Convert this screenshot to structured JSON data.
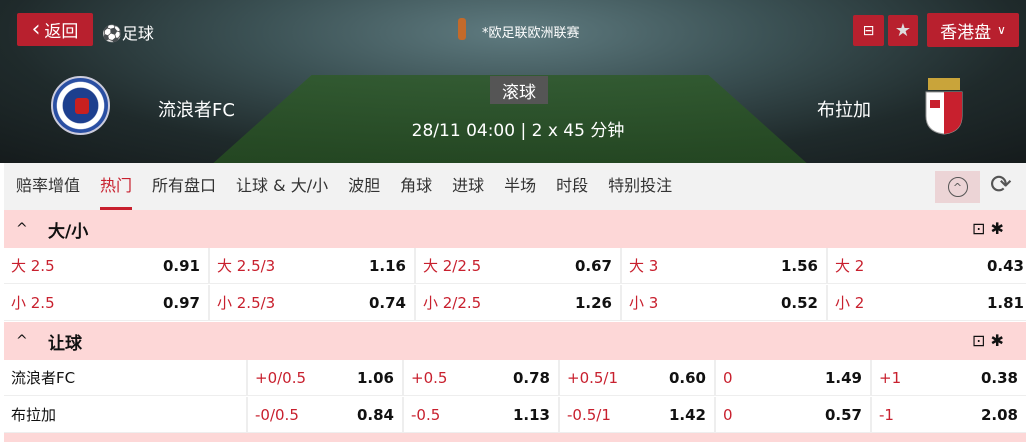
{
  "header": {
    "back_label": "返回",
    "sport": "足球",
    "league": "*欧足联欧洲联赛",
    "odds_format": "香港盘",
    "status": "滚球",
    "kickoff": "28/11 04:00 | 2 x 45 分钟",
    "home": "流浪者FC",
    "away": "布拉加",
    "accent": "#b8202e"
  },
  "tabs": [
    "赔率增值",
    "热门",
    "所有盘口",
    "让球 & 大/小",
    "波胆",
    "角球",
    "进球",
    "半场",
    "时段",
    "特别投注"
  ],
  "active_tab": "热门",
  "markets": [
    {
      "title": "大/小",
      "rows": [
        [
          [
            "大 2.5",
            "0.91"
          ],
          [
            "大 2.5/3",
            "1.16"
          ],
          [
            "大 2/2.5",
            "0.67"
          ],
          [
            "大 3",
            "1.56"
          ],
          [
            "大 2",
            "0.43"
          ]
        ],
        [
          [
            "小 2.5",
            "0.97"
          ],
          [
            "小 2.5/3",
            "0.74"
          ],
          [
            "小 2/2.5",
            "1.26"
          ],
          [
            "小 3",
            "0.52"
          ],
          [
            "小 2",
            "1.81"
          ]
        ]
      ]
    },
    {
      "title": "让球",
      "rows": [
        {
          "team": "流浪者FC",
          "cells": [
            [
              "+0/0.5",
              "1.06"
            ],
            [
              "+0.5",
              "0.78"
            ],
            [
              "+0.5/1",
              "0.60"
            ],
            [
              "0",
              "1.49"
            ],
            [
              "+1",
              "0.38"
            ]
          ]
        },
        {
          "team": "布拉加",
          "cells": [
            [
              "-0/0.5",
              "0.84"
            ],
            [
              "-0.5",
              "1.13"
            ],
            [
              "-0.5/1",
              "1.42"
            ],
            [
              "0",
              "0.57"
            ],
            [
              "-1",
              "2.08"
            ]
          ]
        }
      ]
    }
  ]
}
